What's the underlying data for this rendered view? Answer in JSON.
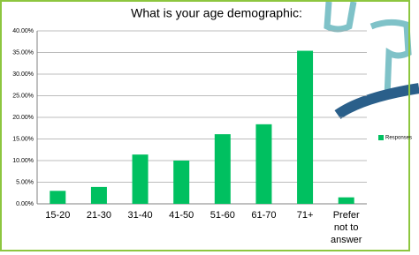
{
  "chart_data": {
    "type": "bar",
    "title": "What is your age demographic:",
    "categories": [
      "15-20",
      "21-30",
      "31-40",
      "41-50",
      "51-60",
      "61-70",
      "71+",
      "Prefer not to answer"
    ],
    "series": [
      {
        "name": "Responses",
        "color": "#00c060",
        "values": [
          3.0,
          3.9,
          11.4,
          10.0,
          16.1,
          18.4,
          35.4,
          1.5
        ]
      }
    ],
    "ylim": [
      0,
      40
    ],
    "yticks": [
      {
        "value": 0,
        "label": "0.00%"
      },
      {
        "value": 5,
        "label": "5.00%"
      },
      {
        "value": 10,
        "label": "10.00%"
      },
      {
        "value": 15,
        "label": "15.00%"
      },
      {
        "value": 20,
        "label": "20.00%"
      },
      {
        "value": 25,
        "label": "25.00%"
      },
      {
        "value": 30,
        "label": "30.00%"
      },
      {
        "value": 35,
        "label": "35.00%"
      },
      {
        "value": 40,
        "label": "40.00%"
      }
    ],
    "grid": true,
    "legend": "right"
  }
}
